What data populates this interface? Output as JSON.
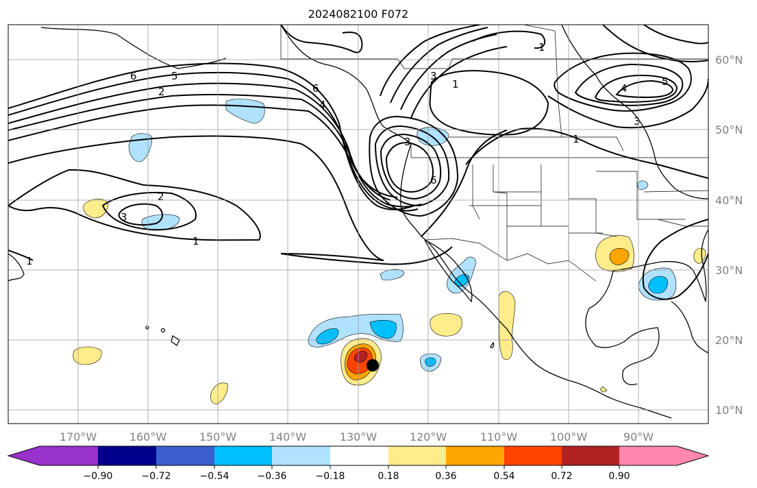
{
  "title": "2024082100 F072",
  "map": {
    "longitude_ticks": [
      "170°W",
      "160°W",
      "150°W",
      "140°W",
      "130°W",
      "120°W",
      "110°W",
      "100°W",
      "90°W"
    ],
    "latitude_ticks": [
      "60°N",
      "50°N",
      "40°N",
      "30°N",
      "20°N",
      "10°N"
    ],
    "contour_labels": [
      "6",
      "5",
      "2",
      "6",
      "4",
      "3",
      "1",
      "1",
      "5",
      "4",
      "3",
      "1",
      "2",
      "3",
      "1",
      "6",
      "3",
      "1"
    ],
    "marker": "storm-center-dot"
  },
  "colorbar": {
    "colors": [
      "#9932CC",
      "#00008B",
      "#3A5FCD",
      "#00BFFF",
      "#B0E2FF",
      "#FFFFFF",
      "#FFEC8B",
      "#FFA500",
      "#FF4500",
      "#B22222",
      "#FF88B0"
    ],
    "tick_labels": [
      "−0.90",
      "−0.72",
      "−0.54",
      "−0.36",
      "−0.18",
      "0.18",
      "0.36",
      "0.54",
      "0.72",
      "0.90"
    ]
  }
}
